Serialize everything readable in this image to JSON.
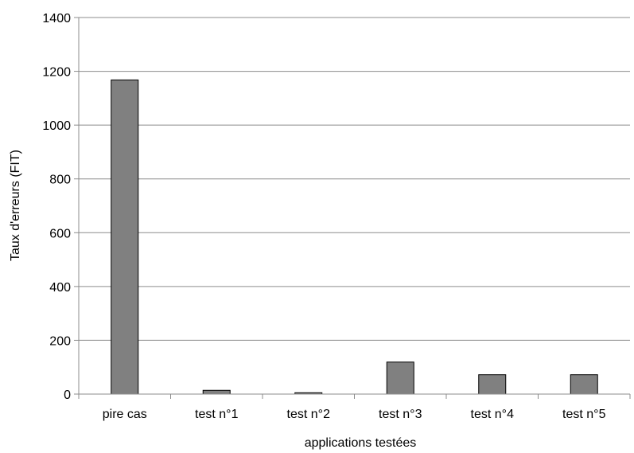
{
  "chart_data": {
    "type": "bar",
    "categories": [
      "pire cas",
      "test n°1",
      "test n°2",
      "test n°3",
      "test n°4",
      "test n°5"
    ],
    "values": [
      1168,
      14,
      5,
      119,
      72,
      72
    ],
    "title": "",
    "xlabel": "applications testées",
    "ylabel": "Taux d'erreurs (FIT)",
    "ylim": [
      0,
      1400
    ],
    "yticks": [
      "0",
      "200",
      "400",
      "600",
      "800",
      "1000",
      "1200",
      "1400"
    ],
    "grid": true,
    "legend": "none",
    "colors": {
      "bar_fill": "#808080",
      "bar_stroke": "#000000",
      "grid": "#8c8c8c",
      "axis": "#8c8c8c"
    }
  }
}
